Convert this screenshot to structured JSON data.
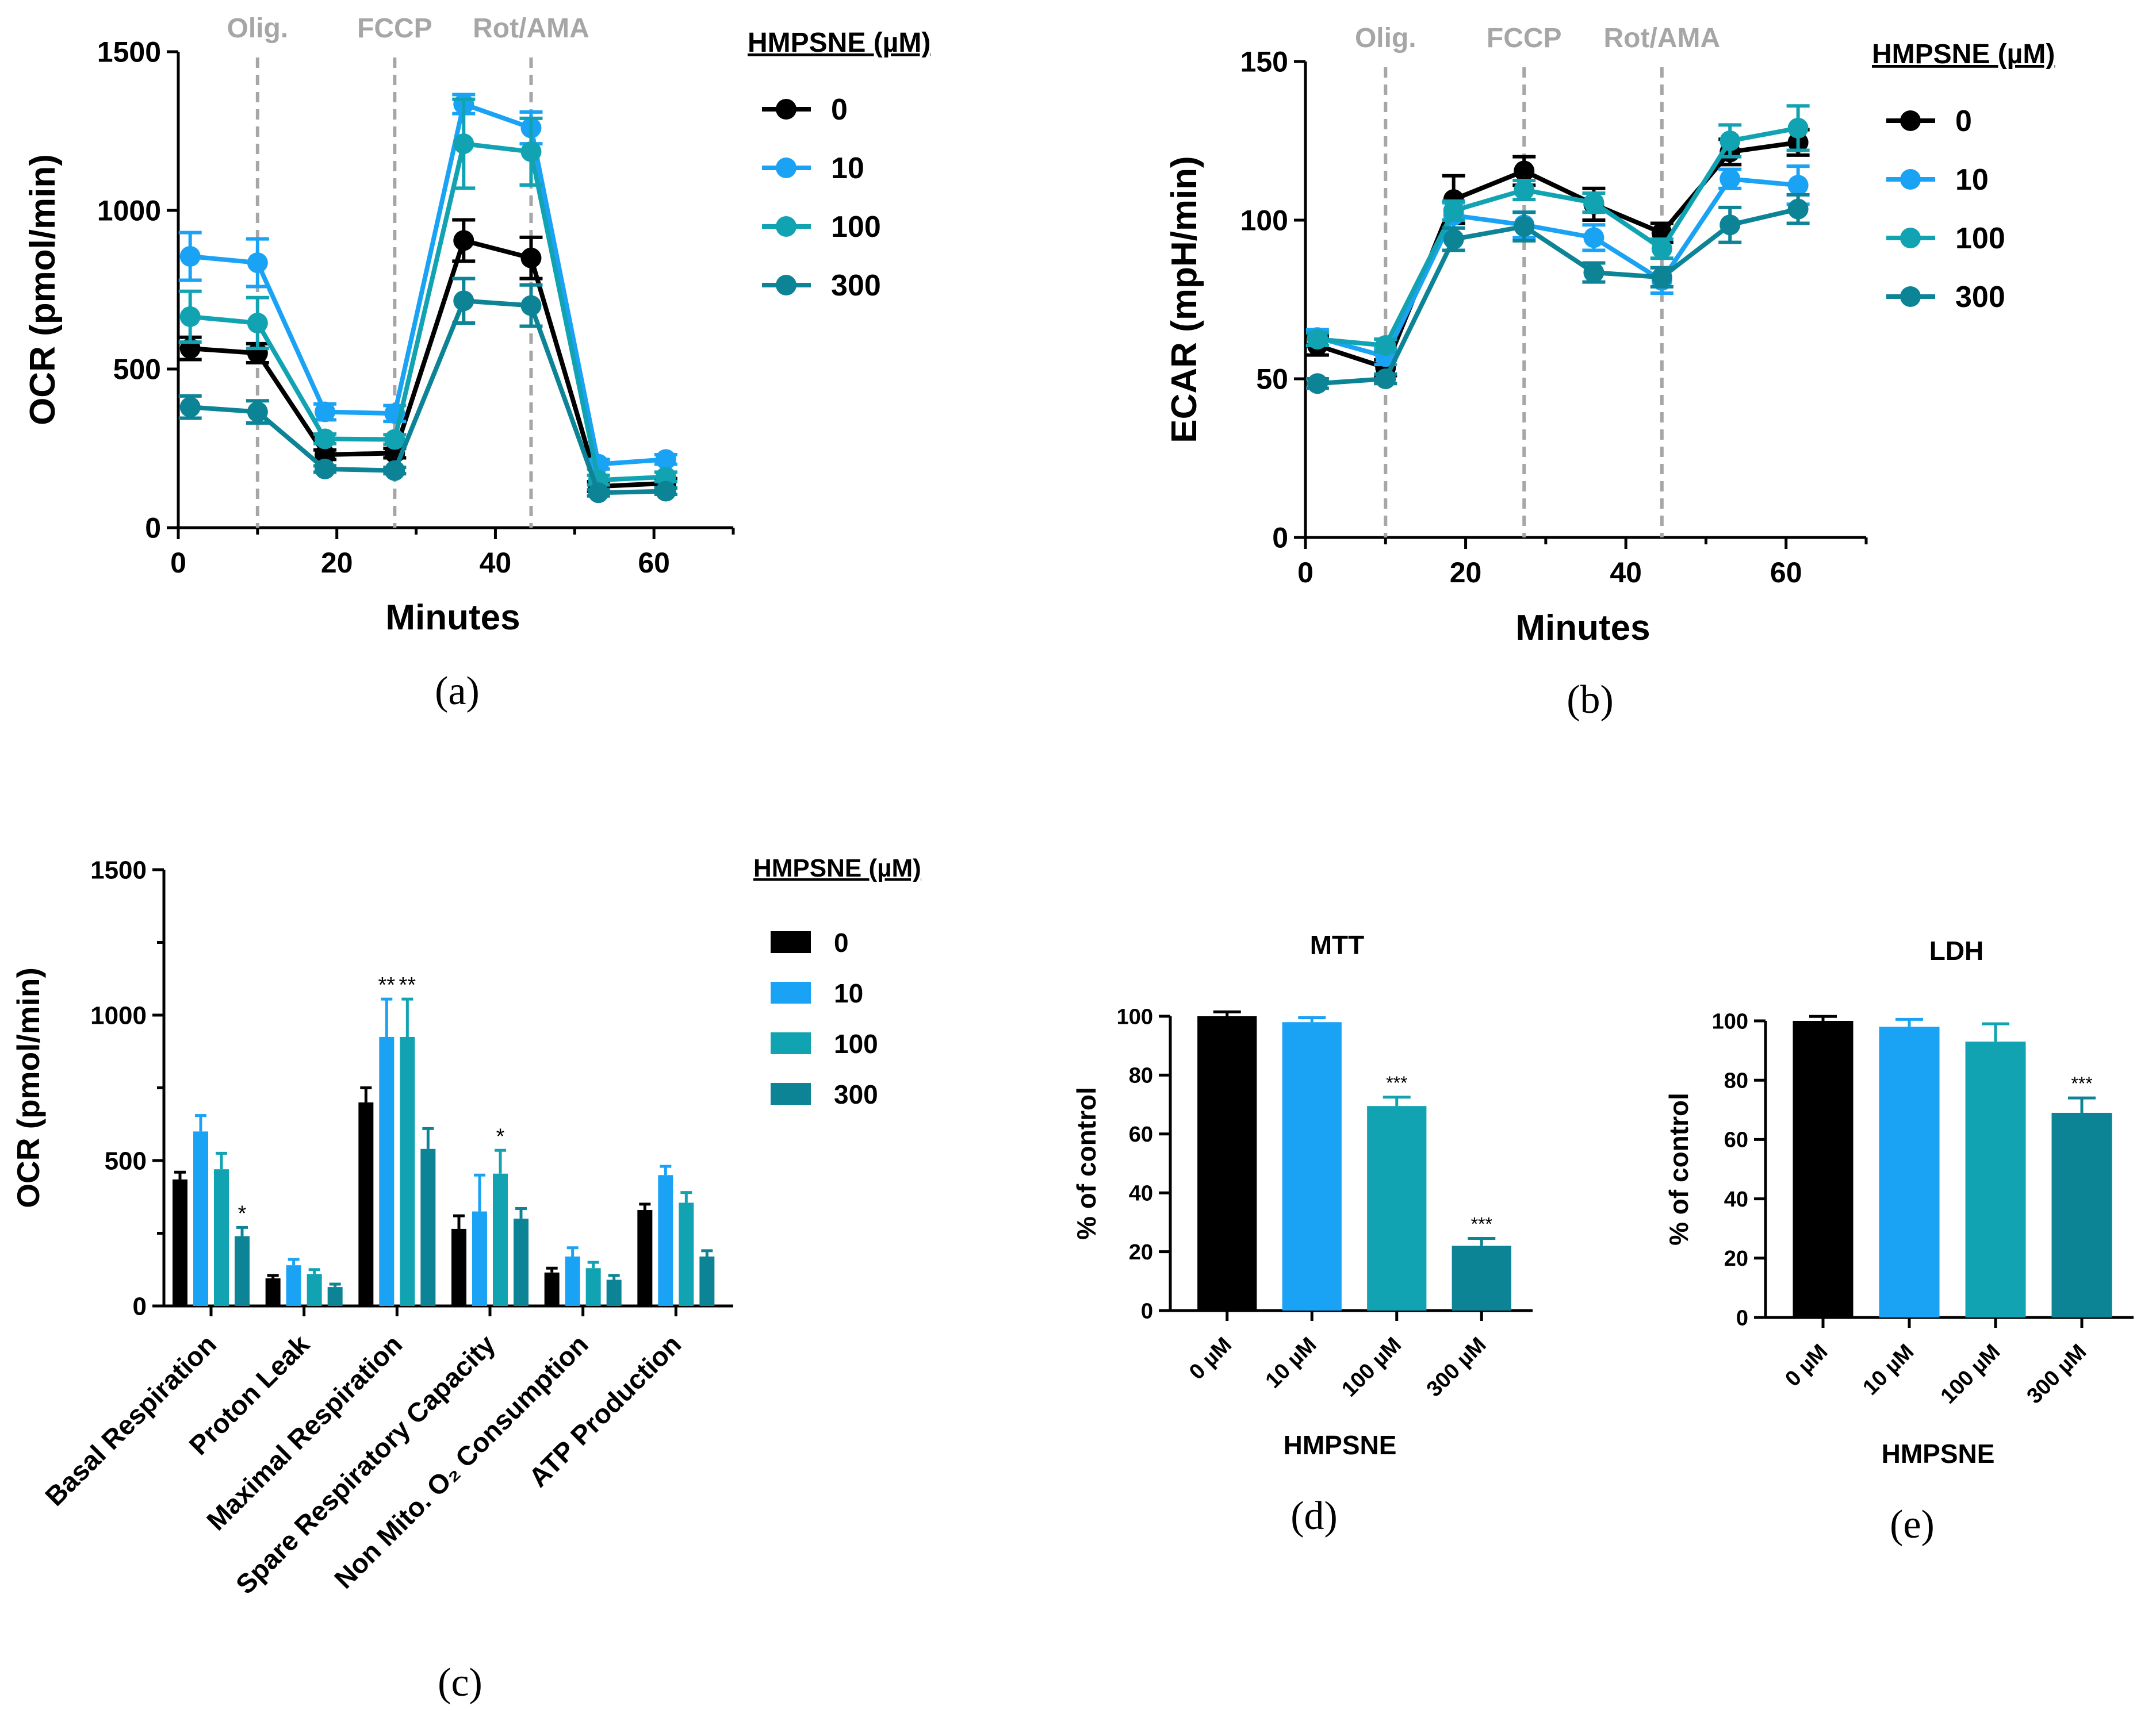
{
  "colors": {
    "0": "#000000",
    "10": "#1aa3f5",
    "100": "#12a3b3",
    "300": "#0d8396"
  },
  "chart_data": [
    {
      "id": "a",
      "type": "line",
      "panel_label": "(a)",
      "xlabel": "Minutes",
      "ylabel": "OCR (pmol/min)",
      "xlim": [
        0,
        70
      ],
      "ylim": [
        0,
        1500
      ],
      "xticks": [
        0,
        20,
        40,
        60
      ],
      "yticks": [
        0,
        500,
        1000,
        1500
      ],
      "events": [
        {
          "x": 10,
          "label": "Olig."
        },
        {
          "x": 27.3,
          "label": "FCCP"
        },
        {
          "x": 44.5,
          "label": "Rot/AMA"
        }
      ],
      "legend_title": "HMPSNE (µM)",
      "x": [
        1.5,
        10,
        18.5,
        27.3,
        36,
        44.5,
        53,
        61.5
      ],
      "series": [
        {
          "name": "0",
          "values": [
            565,
            550,
            230,
            235,
            905,
            850,
            130,
            140
          ],
          "errors": [
            35,
            30,
            15,
            15,
            65,
            65,
            15,
            15
          ]
        },
        {
          "name": "10",
          "values": [
            855,
            835,
            365,
            360,
            1335,
            1260,
            200,
            215
          ],
          "errors": [
            75,
            75,
            25,
            25,
            30,
            50,
            15,
            15
          ]
        },
        {
          "name": "100",
          "values": [
            665,
            645,
            280,
            278,
            1210,
            1185,
            150,
            160
          ],
          "errors": [
            80,
            80,
            15,
            15,
            140,
            105,
            15,
            15
          ]
        },
        {
          "name": "300",
          "values": [
            380,
            365,
            185,
            180,
            715,
            700,
            110,
            115
          ],
          "errors": [
            35,
            35,
            10,
            10,
            70,
            65,
            10,
            10
          ]
        }
      ]
    },
    {
      "id": "b",
      "type": "line",
      "panel_label": "(b)",
      "xlabel": "Minutes",
      "ylabel": "ECAR (mpH/min)",
      "xlim": [
        0,
        70
      ],
      "ylim": [
        0,
        150
      ],
      "xticks": [
        0,
        20,
        40,
        60
      ],
      "yticks": [
        0,
        50,
        100,
        150
      ],
      "events": [
        {
          "x": 10,
          "label": "Olig."
        },
        {
          "x": 27.3,
          "label": "FCCP"
        },
        {
          "x": 44.5,
          "label": "Rot/AMA"
        }
      ],
      "legend_title": "HMPSNE (µM)",
      "x": [
        1.5,
        10,
        18.5,
        27.3,
        36,
        44.5,
        53,
        61.5
      ],
      "series": [
        {
          "name": "0",
          "values": [
            60.5,
            53.5,
            106.5,
            115.5,
            105,
            96,
            121.5,
            124.5
          ],
          "errors": [
            3,
            2.5,
            7.5,
            4.5,
            5,
            3,
            4,
            4
          ]
        },
        {
          "name": "10",
          "values": [
            63,
            57,
            101.5,
            98.5,
            94.5,
            81,
            113,
            111
          ],
          "errors": [
            2.5,
            2.5,
            4,
            4,
            4,
            4,
            3,
            6
          ]
        },
        {
          "name": "100",
          "values": [
            62.5,
            60.5,
            103,
            109.5,
            105.5,
            91,
            125,
            129
          ],
          "errors": [
            2,
            2,
            3,
            3,
            3,
            3,
            5,
            7
          ]
        },
        {
          "name": "300",
          "values": [
            48.5,
            50,
            94,
            98,
            83.5,
            82,
            98.5,
            103.5
          ],
          "errors": [
            1.5,
            1.5,
            3.5,
            4.5,
            3,
            3,
            5.5,
            4.5
          ]
        }
      ]
    },
    {
      "id": "c",
      "type": "bar",
      "panel_label": "(c)",
      "ylabel": "OCR (pmol/min)",
      "ylim": [
        0,
        1500
      ],
      "yticks": [
        0,
        500,
        1000,
        1500
      ],
      "legend_title": "HMPSNE (µM)",
      "categories": [
        "Basal Respiration",
        "Proton Leak",
        "Maximal Respiration",
        "Spare Respiratory Capacity",
        "Non Mito. O₂ Consumption",
        "ATP Production"
      ],
      "series": [
        {
          "name": "0",
          "values": [
            435,
            95,
            700,
            265,
            115,
            330
          ],
          "errors": [
            25,
            10,
            50,
            45,
            15,
            20
          ],
          "sig": [
            "",
            "",
            "",
            "",
            "",
            ""
          ]
        },
        {
          "name": "10",
          "values": [
            600,
            140,
            925,
            325,
            170,
            450
          ],
          "errors": [
            55,
            20,
            130,
            125,
            30,
            30
          ],
          "sig": [
            "",
            "",
            "**",
            "",
            "",
            ""
          ]
        },
        {
          "name": "100",
          "values": [
            470,
            110,
            925,
            455,
            130,
            355
          ],
          "errors": [
            55,
            15,
            130,
            80,
            20,
            35
          ],
          "sig": [
            "",
            "",
            "**",
            "*",
            "",
            ""
          ]
        },
        {
          "name": "300",
          "values": [
            240,
            65,
            540,
            300,
            90,
            170
          ],
          "errors": [
            30,
            10,
            70,
            35,
            15,
            20
          ],
          "sig": [
            "*",
            "",
            "",
            "",
            "",
            ""
          ]
        }
      ]
    },
    {
      "id": "d",
      "type": "bar",
      "panel_label": "(d)",
      "title": "MTT",
      "xlabel": "HMPSNE",
      "ylabel": "% of control",
      "ylim": [
        0,
        100
      ],
      "yticks": [
        0,
        20,
        40,
        60,
        80,
        100
      ],
      "categories": [
        "0 µM",
        "10 µM",
        "100 µM",
        "300 µM"
      ],
      "values": [
        100,
        98,
        69.5,
        22
      ],
      "errors": [
        1.5,
        1.5,
        3,
        2.5
      ],
      "sig": [
        "",
        "",
        "***",
        "***"
      ],
      "series_keys": [
        "0",
        "10",
        "100",
        "300"
      ]
    },
    {
      "id": "e",
      "type": "bar",
      "panel_label": "(e)",
      "title": "LDH",
      "xlabel": "HMPSNE",
      "ylabel": "% of control",
      "ylim": [
        0,
        100
      ],
      "yticks": [
        0,
        20,
        40,
        60,
        80,
        100
      ],
      "categories": [
        "0 µM",
        "10 µM",
        "100 µM",
        "300 µM"
      ],
      "values": [
        100,
        98,
        93,
        69
      ],
      "errors": [
        1.5,
        2.5,
        6,
        5
      ],
      "sig": [
        "",
        "",
        "",
        "***"
      ],
      "series_keys": [
        "0",
        "10",
        "100",
        "300"
      ]
    }
  ]
}
